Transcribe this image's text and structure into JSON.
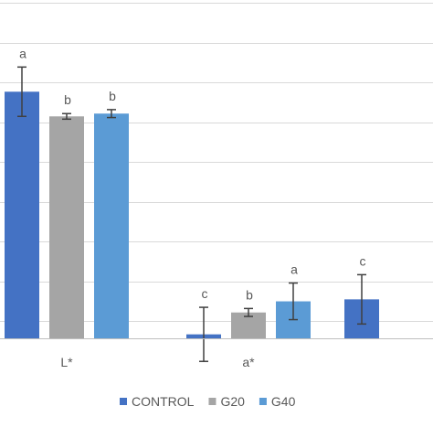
{
  "chart_data": {
    "type": "bar",
    "categories": [
      "L*",
      "a*",
      ""
    ],
    "series": [
      {
        "name": "CONTROL",
        "color": "#4472C4",
        "values": [
          62,
          1,
          9.8
        ],
        "errors": [
          6.2,
          6.8,
          6.2
        ],
        "letters": [
          "a",
          "c",
          "c"
        ]
      },
      {
        "name": "G20",
        "color": "#A5A5A5",
        "values": [
          55.8,
          6.5,
          null
        ],
        "errors": [
          0.7,
          1.0,
          null
        ],
        "letters": [
          "b",
          "b",
          ""
        ]
      },
      {
        "name": "G40",
        "color": "#5B9BD5",
        "values": [
          56.5,
          9.3,
          null
        ],
        "errors": [
          1.0,
          4.6,
          null
        ],
        "letters": [
          "b",
          "a",
          ""
        ]
      }
    ],
    "grid": true,
    "gridline_count": 9,
    "legend_position": "bottom"
  }
}
